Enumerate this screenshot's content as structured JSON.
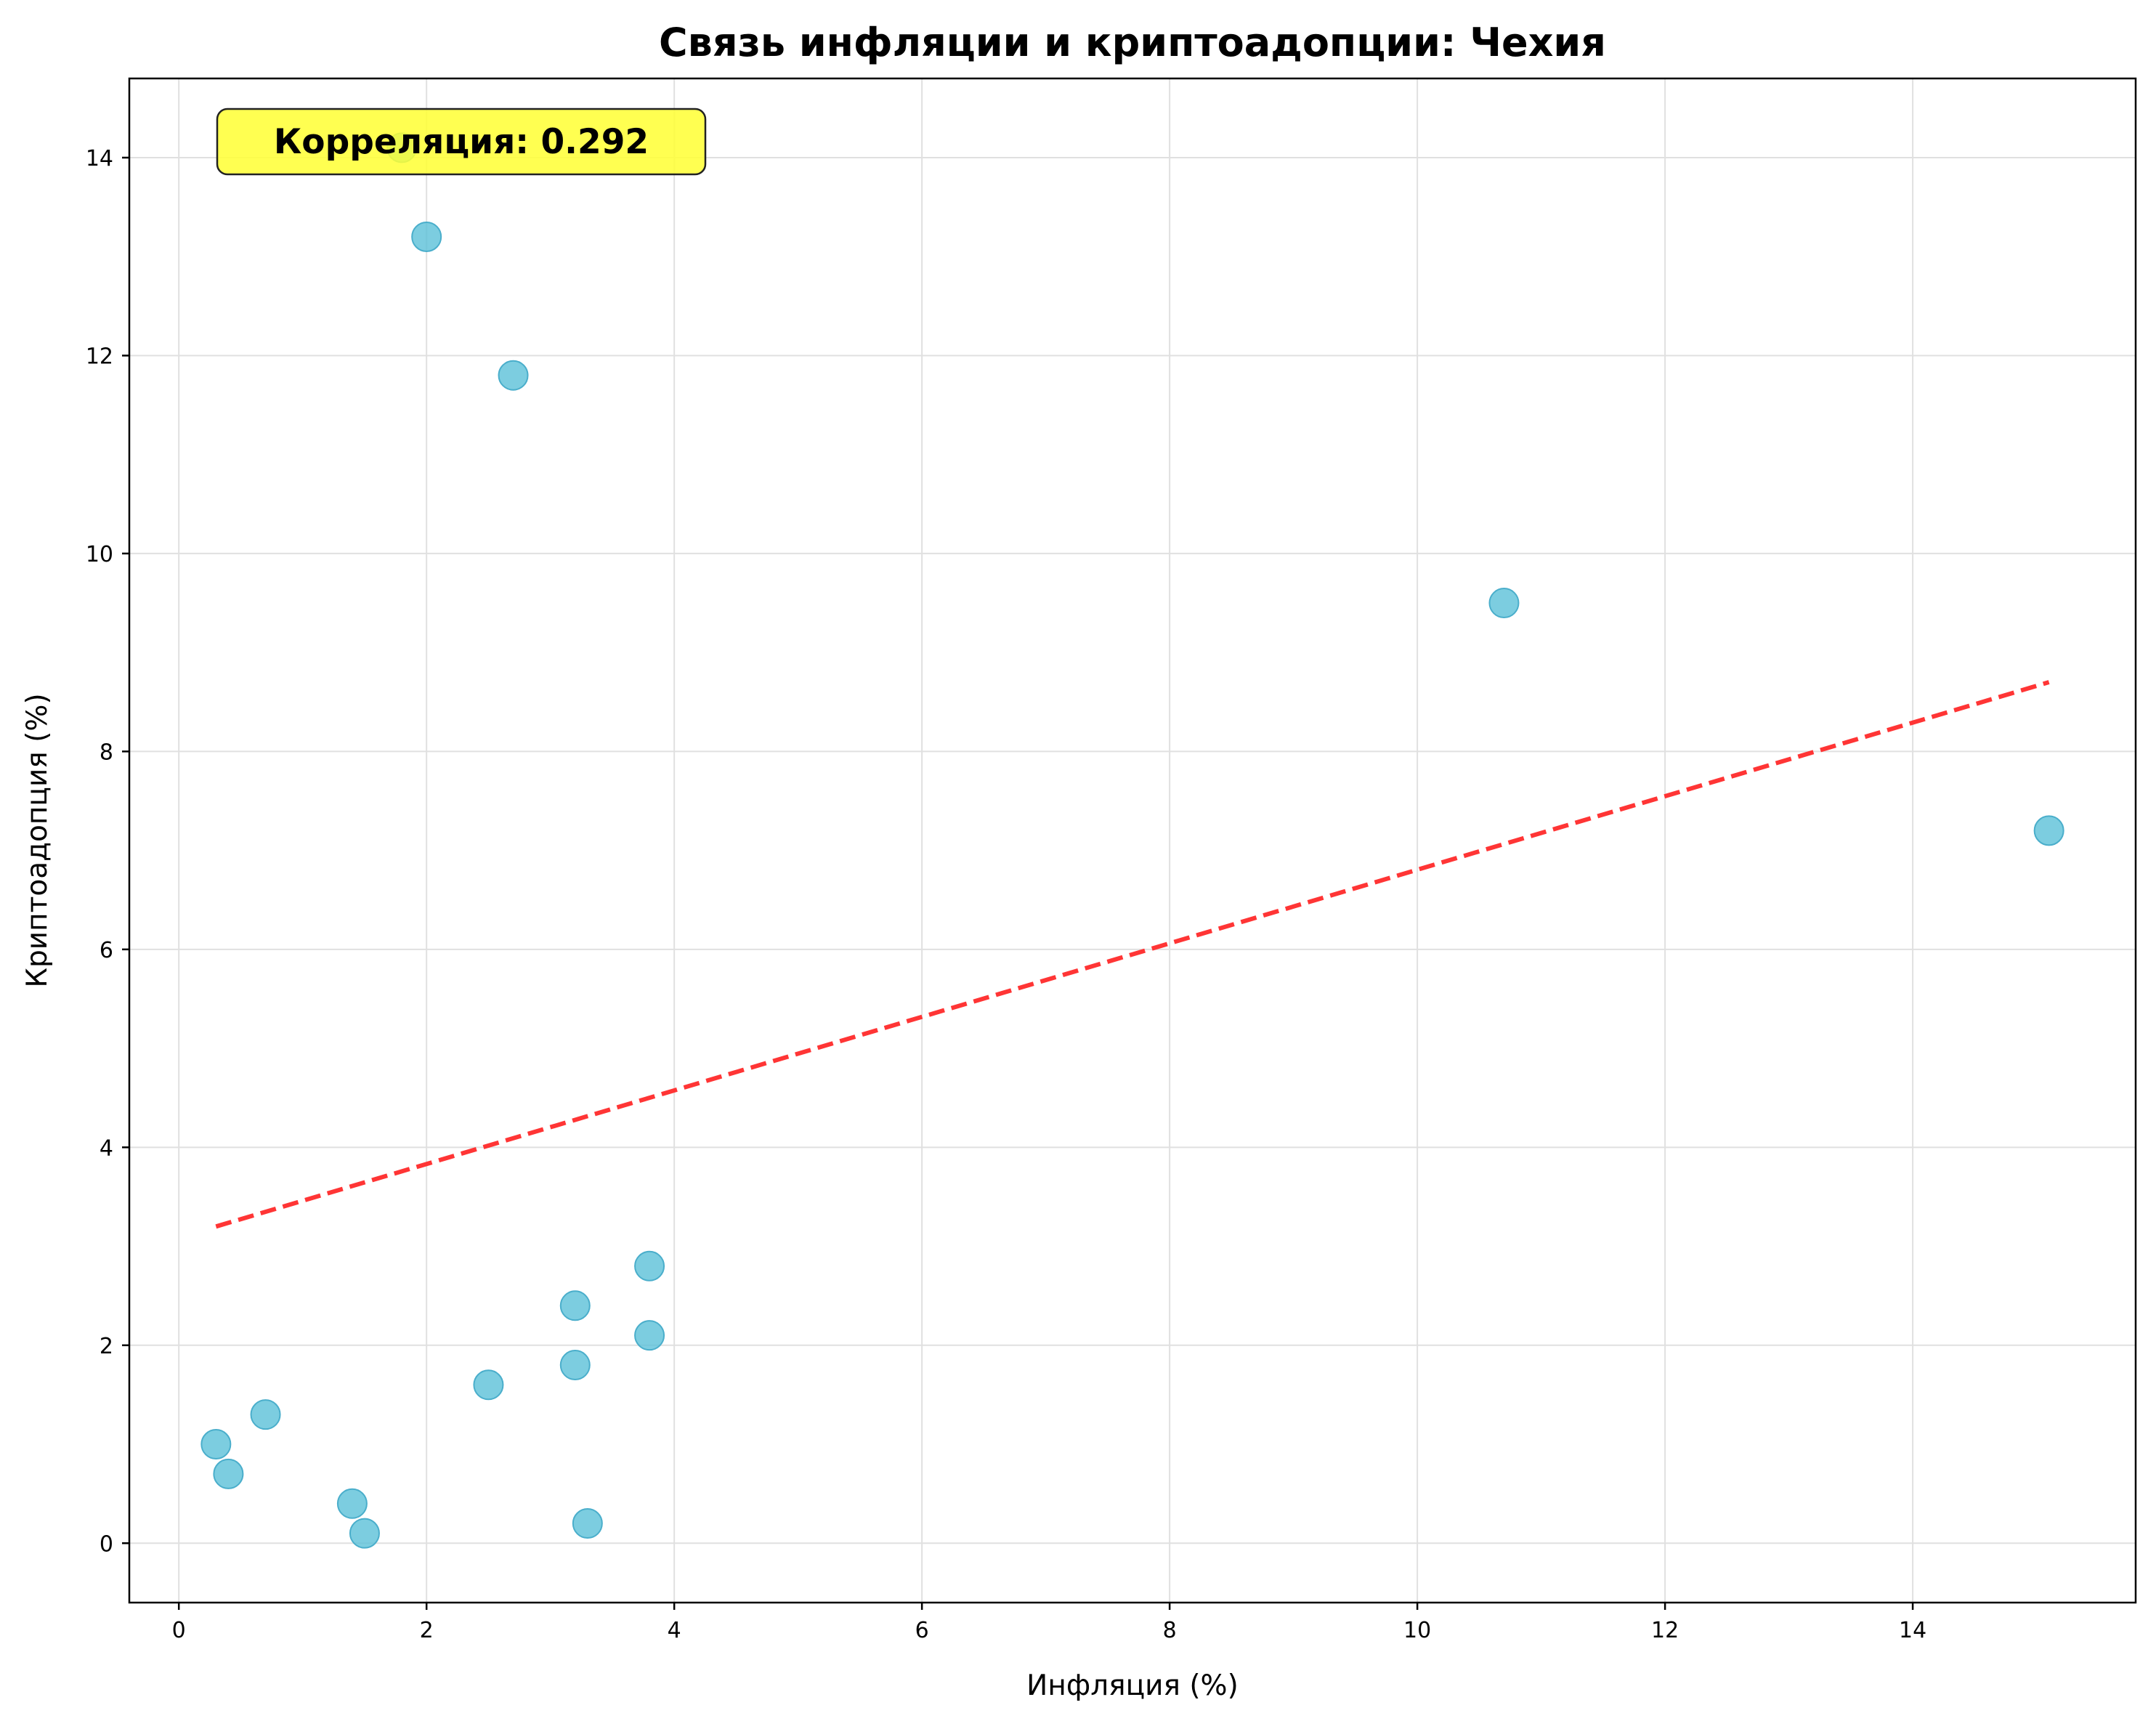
{
  "chart_data": {
    "type": "scatter",
    "title": "Связь инфляции и криптоадопции: Чехия",
    "xlabel": "Инфляция (%)",
    "ylabel": "Криптоадопция (%)",
    "xlim": [
      -0.4,
      15.8
    ],
    "ylim": [
      -0.6,
      14.8
    ],
    "xticks": [
      0,
      2,
      4,
      6,
      8,
      10,
      12,
      14
    ],
    "yticks": [
      0,
      2,
      4,
      6,
      8,
      10,
      12,
      14
    ],
    "grid": true,
    "points": [
      {
        "x": 0.3,
        "y": 1.0
      },
      {
        "x": 0.4,
        "y": 0.7
      },
      {
        "x": 0.7,
        "y": 1.3
      },
      {
        "x": 1.4,
        "y": 0.4
      },
      {
        "x": 1.5,
        "y": 0.1
      },
      {
        "x": 1.8,
        "y": 14.1
      },
      {
        "x": 2.0,
        "y": 13.2
      },
      {
        "x": 2.5,
        "y": 1.6
      },
      {
        "x": 2.7,
        "y": 11.8
      },
      {
        "x": 3.2,
        "y": 2.4
      },
      {
        "x": 3.2,
        "y": 1.8
      },
      {
        "x": 3.3,
        "y": 0.2
      },
      {
        "x": 3.8,
        "y": 2.8
      },
      {
        "x": 3.8,
        "y": 2.1
      },
      {
        "x": 10.7,
        "y": 9.5
      },
      {
        "x": 15.1,
        "y": 7.2
      }
    ],
    "trendline": {
      "x": [
        0.3,
        15.1
      ],
      "y": [
        3.2,
        8.7
      ]
    },
    "annotation": {
      "text": "Корреляция: 0.292"
    },
    "colors": {
      "points": "#5bc0d8",
      "trendline": "#ff2a2a",
      "annotation_bg": "#ffff33",
      "grid": "#e0e0e0"
    }
  }
}
